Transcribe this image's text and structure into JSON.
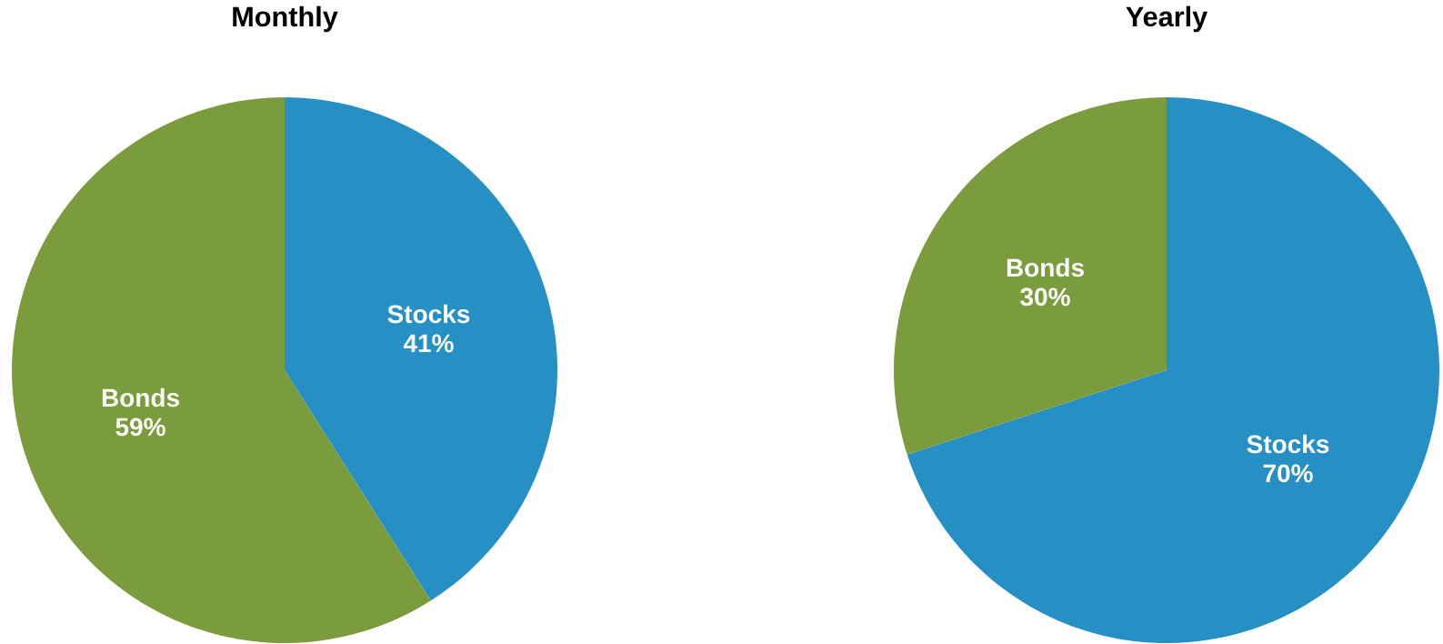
{
  "chart_data": [
    {
      "type": "pie",
      "title": "Monthly",
      "categories": [
        "Stocks",
        "Bonds"
      ],
      "values": [
        41,
        59
      ],
      "colors": [
        "#2690c5",
        "#7a9c3c"
      ],
      "value_labels": [
        "41%",
        "59%"
      ]
    },
    {
      "type": "pie",
      "title": "Yearly",
      "categories": [
        "Stocks",
        "Bonds"
      ],
      "values": [
        70,
        30
      ],
      "colors": [
        "#2690c5",
        "#7a9c3c"
      ],
      "value_labels": [
        "70%",
        "30%"
      ]
    }
  ]
}
